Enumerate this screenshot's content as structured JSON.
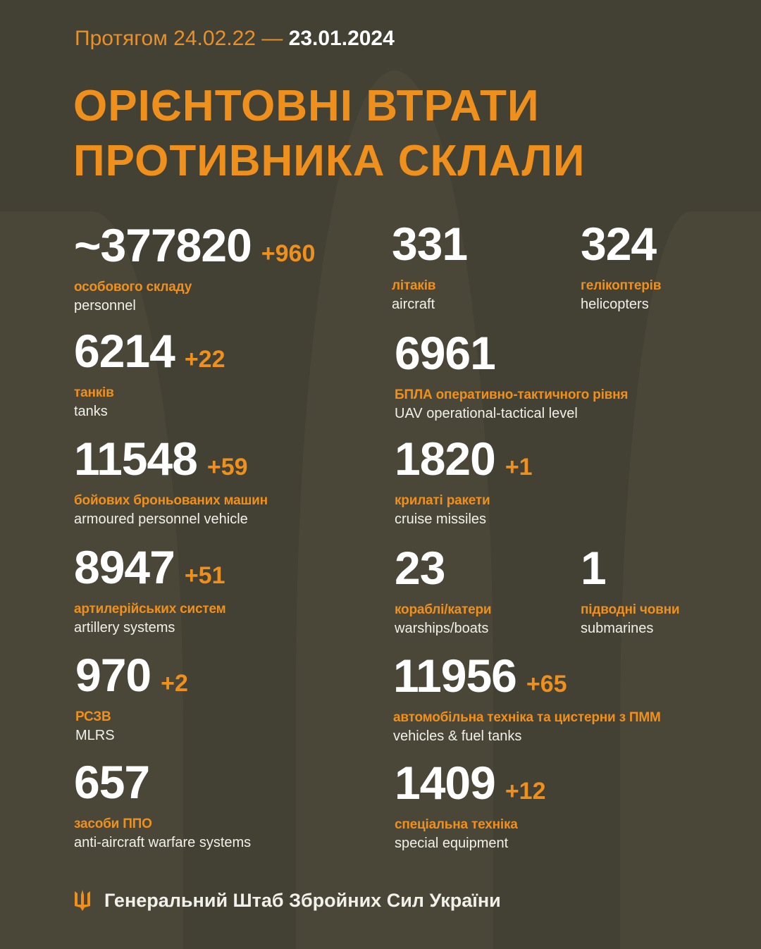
{
  "header": {
    "period_prefix": "Протягом 24.02.22 —",
    "period_end": "23.01.2024",
    "title_line1": "ОРІЄНТОВНІ ВТРАТИ",
    "title_line2": "ПРОТИВНИКА СКЛАЛИ"
  },
  "colors": {
    "background": "#434034",
    "accent": "#f0901c",
    "text": "#ffffff"
  },
  "stats": {
    "personnel": {
      "value": "~377820",
      "delta": "+960",
      "ua": "особового складу",
      "en": "personnel"
    },
    "aircraft": {
      "value": "331",
      "delta": "",
      "ua": "літаків",
      "en": "aircraft"
    },
    "helicopters": {
      "value": "324",
      "delta": "",
      "ua": "гелікоптерів",
      "en": "helicopters"
    },
    "tanks": {
      "value": "6214",
      "delta": "+22",
      "ua": "танків",
      "en": "tanks"
    },
    "uav": {
      "value": "6961",
      "delta": "",
      "ua": "БПЛА оперативно-тактичного рівня",
      "en": "UAV operational-tactical level"
    },
    "apv": {
      "value": "11548",
      "delta": "+59",
      "ua": "бойових броньованих машин",
      "en": "armoured personnel vehicle"
    },
    "cruise": {
      "value": "1820",
      "delta": "+1",
      "ua": "крилаті ракети",
      "en": "cruise missiles"
    },
    "artillery": {
      "value": "8947",
      "delta": "+51",
      "ua": "артилерійських систем",
      "en": "artillery systems"
    },
    "warships": {
      "value": "23",
      "delta": "",
      "ua": "кораблі/катери",
      "en": "warships/boats"
    },
    "submarines": {
      "value": "1",
      "delta": "",
      "ua": "підводні човни",
      "en": "submarines"
    },
    "mlrs": {
      "value": "970",
      "delta": "+2",
      "ua": "РСЗВ",
      "en": "MLRS"
    },
    "vehicles": {
      "value": "11956",
      "delta": "+65",
      "ua": "автомобільна техніка та цистерни з ПММ",
      "en": "vehicles & fuel tanks"
    },
    "aa": {
      "value": "657",
      "delta": "",
      "ua": "засоби ППО",
      "en": "anti-aircraft warfare systems"
    },
    "special": {
      "value": "1409",
      "delta": "+12",
      "ua": "спеціальна техніка",
      "en": "special equipment"
    }
  },
  "footer": {
    "icon": "trident-icon",
    "text": "Генеральний Штаб Збройних Сил України"
  }
}
